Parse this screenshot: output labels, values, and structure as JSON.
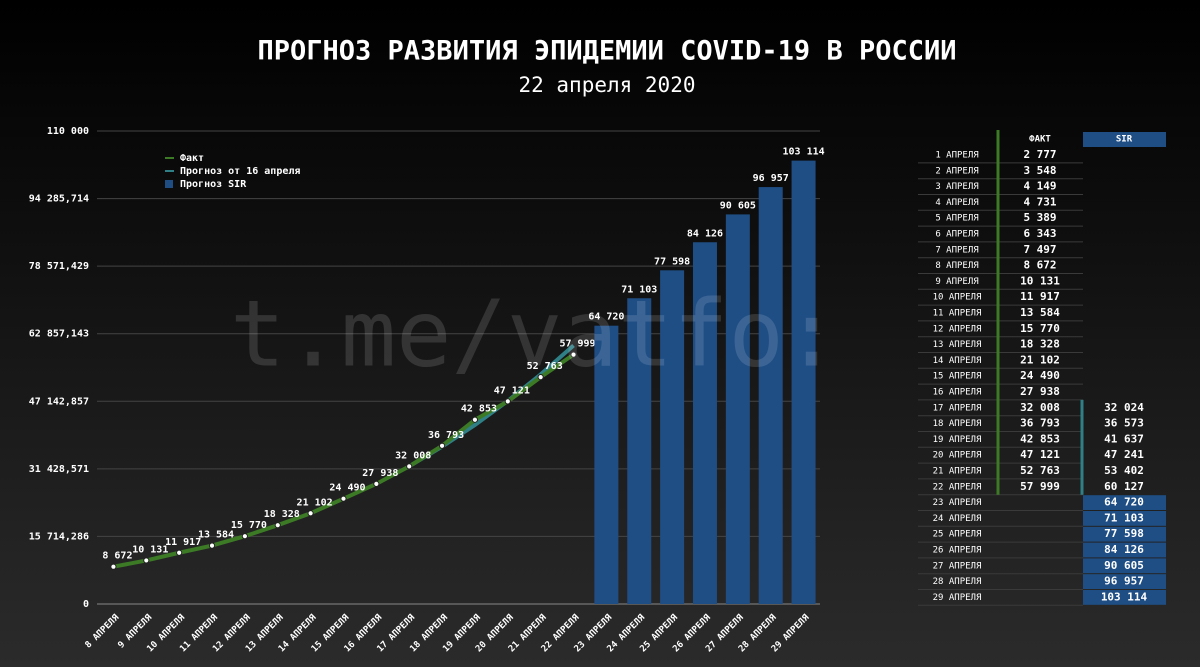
{
  "chart_data": {
    "type": "bar_line",
    "title": "ПРОГНОЗ РАЗВИТИЯ ЭПИДЕМИИ COVID-19 В РОССИИ",
    "subtitle": "22 апреля 2020",
    "watermark": "t.me/vatfo:",
    "categories": [
      "8 АПРЕЛЯ",
      "9 АПРЕЛЯ",
      "10 АПРЕЛЯ",
      "11 АПРЕЛЯ",
      "12 АПРЕЛЯ",
      "13 АПРЕЛЯ",
      "14 АПРЕЛЯ",
      "15 АПРЕЛЯ",
      "16 АПРЕЛЯ",
      "17 АПРЕЛЯ",
      "18 АПРЕЛЯ",
      "19 АПРЕЛЯ",
      "20 АПРЕЛЯ",
      "21 АПРЕЛЯ",
      "22 АПРЕЛЯ",
      "23 АПРЕЛЯ",
      "24 АПРЕЛЯ",
      "25 АПРЕЛЯ",
      "26 АПРЕЛЯ",
      "27 АПРЕЛЯ",
      "28 АПРЕЛЯ",
      "29 АПРЕЛЯ"
    ],
    "ylim": [
      0,
      110000
    ],
    "yticks": [
      0,
      {
        "value": 15714.286,
        "label": "15 714,286"
      },
      {
        "value": 31428.571,
        "label": "31 428,571"
      },
      {
        "value": 47142.857,
        "label": "47 142,857"
      },
      {
        "value": 62857.143,
        "label": "62 857,143"
      },
      {
        "value": 78571.429,
        "label": "78 571,429"
      },
      {
        "value": 94285.714,
        "label": "94 285,714"
      },
      {
        "value": 110000,
        "label": "110 000"
      }
    ],
    "grid": true,
    "series": [
      {
        "name": "Прогноз от 16 апреля",
        "kind": "line",
        "color": "#2f7f86",
        "values": [
          null,
          null,
          null,
          null,
          null,
          null,
          null,
          null,
          null,
          32024,
          36573,
          41637,
          47241,
          53402,
          60127,
          null,
          null,
          null,
          null,
          null,
          null,
          null
        ]
      },
      {
        "name": "Факт",
        "kind": "line",
        "color": "#3c7a26",
        "values": [
          8672,
          10131,
          11917,
          13584,
          15770,
          18328,
          21102,
          24490,
          27938,
          32008,
          36793,
          42853,
          47121,
          52763,
          57999,
          null,
          null,
          null,
          null,
          null,
          null,
          null
        ],
        "value_labels": [
          "8 672",
          "10 131",
          "11 917",
          "13 584",
          "15 770",
          "18 328",
          "21 102",
          "24 490",
          "27 938",
          "32 008",
          "36 793",
          "42 853",
          "47 121",
          "52 763",
          "57 999",
          null,
          null,
          null,
          null,
          null,
          null,
          null
        ]
      },
      {
        "name": "Прогноз SIR",
        "kind": "bar",
        "color": "#1f4e85",
        "values": [
          null,
          null,
          null,
          null,
          null,
          null,
          null,
          null,
          null,
          null,
          null,
          null,
          null,
          null,
          null,
          64720,
          71103,
          77598,
          84126,
          90605,
          96957,
          103114
        ],
        "value_labels": [
          null,
          null,
          null,
          null,
          null,
          null,
          null,
          null,
          null,
          null,
          null,
          null,
          null,
          null,
          null,
          "64 720",
          "71 103",
          "77 598",
          "84 126",
          "90 605",
          "96 957",
          "103 114"
        ]
      }
    ],
    "legend_order": [
      1,
      0,
      2
    ]
  },
  "table": {
    "header": [
      "ФАКТ",
      "SIR"
    ],
    "rows": [
      [
        "1 АПРЕЛЯ",
        "2 777",
        null
      ],
      [
        "2 АПРЕЛЯ",
        "3 548",
        null
      ],
      [
        "3 АПРЕЛЯ",
        "4 149",
        null
      ],
      [
        "4 АПРЕЛЯ",
        "4 731",
        null
      ],
      [
        "5 АПРЕЛЯ",
        "5 389",
        null
      ],
      [
        "6 АПРЕЛЯ",
        "6 343",
        null
      ],
      [
        "7 АПРЕЛЯ",
        "7 497",
        null
      ],
      [
        "8 АПРЕЛЯ",
        "8 672",
        null
      ],
      [
        "9 АПРЕЛЯ",
        "10 131",
        null
      ],
      [
        "10 АПРЕЛЯ",
        "11 917",
        null
      ],
      [
        "11 АПРЕЛЯ",
        "13 584",
        null
      ],
      [
        "12 АПРЕЛЯ",
        "15 770",
        null
      ],
      [
        "13 АПРЕЛЯ",
        "18 328",
        null
      ],
      [
        "14 АПРЕЛЯ",
        "21 102",
        null
      ],
      [
        "15 АПРЕЛЯ",
        "24 490",
        null
      ],
      [
        "16 АПРЕЛЯ",
        "27 938",
        null
      ],
      [
        "17 АПРЕЛЯ",
        "32 008",
        "32 024"
      ],
      [
        "18 АПРЕЛЯ",
        "36 793",
        "36 573"
      ],
      [
        "19 АПРЕЛЯ",
        "42 853",
        "41 637"
      ],
      [
        "20 АПРЕЛЯ",
        "47 121",
        "47 241"
      ],
      [
        "21 АПРЕЛЯ",
        "52 763",
        "53 402"
      ],
      [
        "22 АПРЕЛЯ",
        "57 999",
        "60 127"
      ],
      [
        "23 АПРЕЛЯ",
        null,
        "64 720"
      ],
      [
        "24 АПРЕЛЯ",
        null,
        "71 103"
      ],
      [
        "25 АПРЕЛЯ",
        null,
        "77 598"
      ],
      [
        "26 АПРЕЛЯ",
        null,
        "84 126"
      ],
      [
        "27 АПРЕЛЯ",
        null,
        "90 605"
      ],
      [
        "28 АПРЕЛЯ",
        null,
        "96 957"
      ],
      [
        "29 АПРЕЛЯ",
        null,
        "103 114"
      ]
    ]
  }
}
